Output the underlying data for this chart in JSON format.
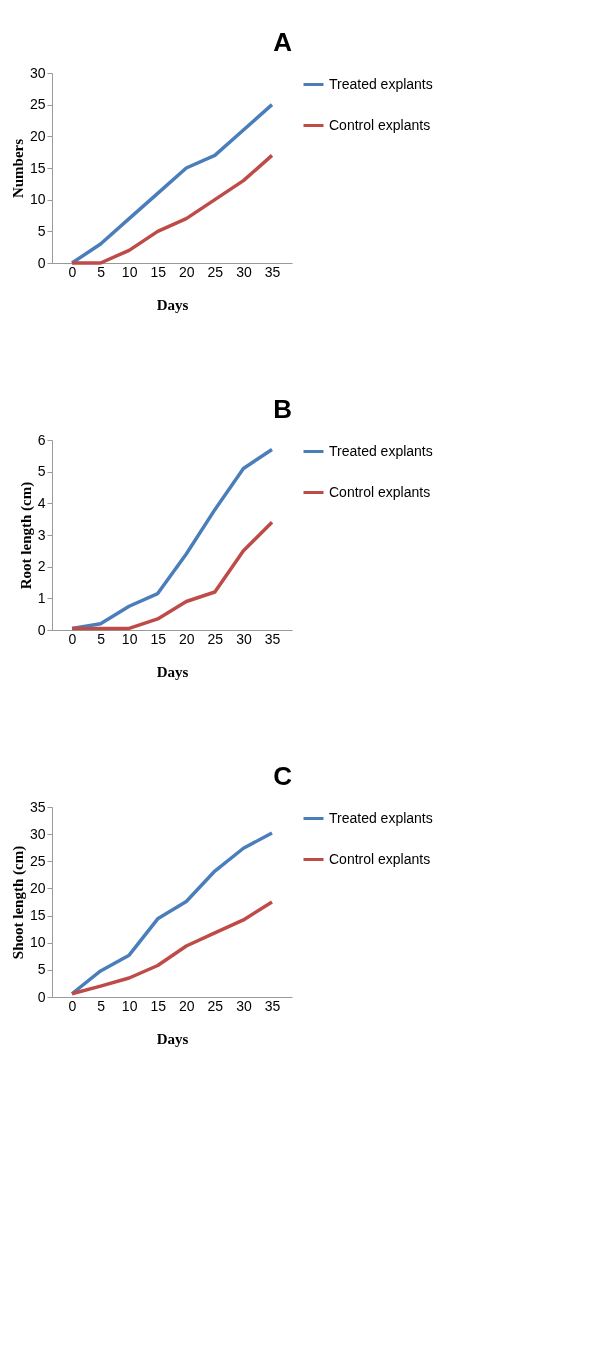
{
  "chart_data": [
    {
      "type": "line",
      "title": "A",
      "xlabel": "Days",
      "ylabel": "Numbers",
      "categories": [
        "0",
        "5",
        "10",
        "15",
        "20",
        "25",
        "30",
        "35"
      ],
      "ylim": [
        0,
        30
      ],
      "yticks": [
        0,
        5,
        10,
        15,
        20,
        25,
        30
      ],
      "grid": false,
      "legend": "right",
      "marker": "none",
      "line_style": "solid",
      "series": [
        {
          "name": "Treated explants",
          "color": "#4a7ebb",
          "values": [
            0,
            3,
            7,
            11,
            15,
            17,
            21,
            25
          ]
        },
        {
          "name": "Control explants",
          "color": "#be4b48",
          "values": [
            0,
            0,
            2,
            5,
            7,
            10,
            13,
            17
          ]
        }
      ]
    },
    {
      "type": "line",
      "title": "B",
      "xlabel": "Days",
      "ylabel": "Root length (cm)",
      "categories": [
        "0",
        "5",
        "10",
        "15",
        "20",
        "25",
        "30",
        "35"
      ],
      "ylim": [
        0,
        6
      ],
      "yticks": [
        0,
        1,
        2,
        3,
        4,
        5,
        6
      ],
      "grid": false,
      "legend": "right",
      "marker": "none",
      "line_style": "solid",
      "series": [
        {
          "name": "Treated explants",
          "color": "#4a7ebb",
          "values": [
            0.05,
            0.2,
            0.75,
            1.15,
            2.4,
            3.8,
            5.1,
            5.7
          ]
        },
        {
          "name": "Control explants",
          "color": "#be4b48",
          "values": [
            0.05,
            0.05,
            0.05,
            0.35,
            0.9,
            1.2,
            2.5,
            3.4
          ]
        }
      ]
    },
    {
      "type": "line",
      "title": "C",
      "xlabel": "Days",
      "ylabel": "Shoot length (cm)",
      "categories": [
        "0",
        "5",
        "10",
        "15",
        "20",
        "25",
        "30",
        "35"
      ],
      "ylim": [
        0,
        35
      ],
      "yticks": [
        0,
        5,
        10,
        15,
        20,
        25,
        30,
        35
      ],
      "grid": false,
      "legend": "right",
      "marker": "none",
      "line_style": "solid",
      "series": [
        {
          "name": "Treated explants",
          "color": "#4a7ebb",
          "values": [
            0.6,
            4.8,
            7.7,
            14.4,
            17.6,
            23.2,
            27.4,
            30.2
          ]
        },
        {
          "name": "Control explants",
          "color": "#be4b48",
          "values": [
            0.6,
            2.0,
            3.5,
            5.8,
            9.4,
            11.8,
            14.2,
            17.5
          ]
        }
      ]
    }
  ]
}
